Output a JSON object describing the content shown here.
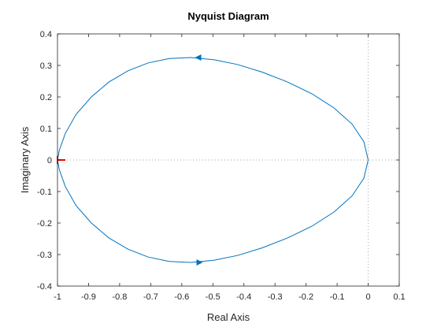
{
  "chart_data": {
    "type": "line",
    "title": "Nyquist Diagram",
    "xlabel": "Real Axis",
    "ylabel": "Imaginary Axis",
    "xlim": [
      -1,
      0.1
    ],
    "ylim": [
      -0.4,
      0.4
    ],
    "x_ticks": [
      -1,
      -0.9,
      -0.8,
      -0.7,
      -0.6,
      -0.5,
      -0.4,
      -0.3,
      -0.2,
      -0.1,
      0,
      0.1
    ],
    "x_tick_labels": [
      "-1",
      "-0.9",
      "-0.8",
      "-0.7",
      "-0.6",
      "-0.5",
      "-0.4",
      "-0.3",
      "-0.2",
      "-0.1",
      "0",
      "0.1"
    ],
    "y_ticks": [
      -0.4,
      -0.3,
      -0.2,
      -0.1,
      0,
      0.1,
      0.2,
      0.3,
      0.4
    ],
    "y_tick_labels": [
      "-0.4",
      "-0.3",
      "-0.2",
      "-0.1",
      "0",
      "0.1",
      "0.2",
      "0.3",
      "0.4"
    ],
    "grid": false,
    "reference_lines": {
      "x": 0,
      "y": 0,
      "style": "dotted"
    },
    "critical_point": {
      "x": -1,
      "y": 0,
      "marker": "+"
    },
    "series": [
      {
        "x": [
          0,
          -0.014,
          -0.052,
          -0.11,
          -0.181,
          -0.261,
          -0.342,
          -0.421,
          -0.497,
          -0.57,
          -0.64,
          -0.708,
          -0.773,
          -0.835,
          -0.891,
          -0.94,
          -0.975,
          -0.994,
          -1.0,
          -0.994,
          -0.975,
          -0.94,
          -0.891,
          -0.835,
          -0.773,
          -0.708,
          -0.64,
          -0.57,
          -0.497,
          -0.421,
          -0.342,
          -0.261,
          -0.181,
          -0.11,
          -0.052,
          -0.014,
          0
        ],
        "y": [
          0,
          0.058,
          0.114,
          0.165,
          0.21,
          0.248,
          0.279,
          0.303,
          0.318,
          0.325,
          0.322,
          0.308,
          0.283,
          0.247,
          0.2,
          0.145,
          0.084,
          0.031,
          0,
          -0.031,
          -0.084,
          -0.145,
          -0.2,
          -0.247,
          -0.283,
          -0.308,
          -0.322,
          -0.325,
          -0.318,
          -0.303,
          -0.279,
          -0.248,
          -0.21,
          -0.165,
          -0.114,
          -0.058,
          0
        ]
      }
    ],
    "arrows": [
      {
        "x": -0.545,
        "y": 0.325,
        "direction": "left"
      },
      {
        "x": -0.545,
        "y": -0.325,
        "direction": "right"
      }
    ],
    "colors": {
      "curve": "#0072BD",
      "critical_point": "#FF0000",
      "reference": "#A6A6A6",
      "axes": "#262626"
    }
  }
}
